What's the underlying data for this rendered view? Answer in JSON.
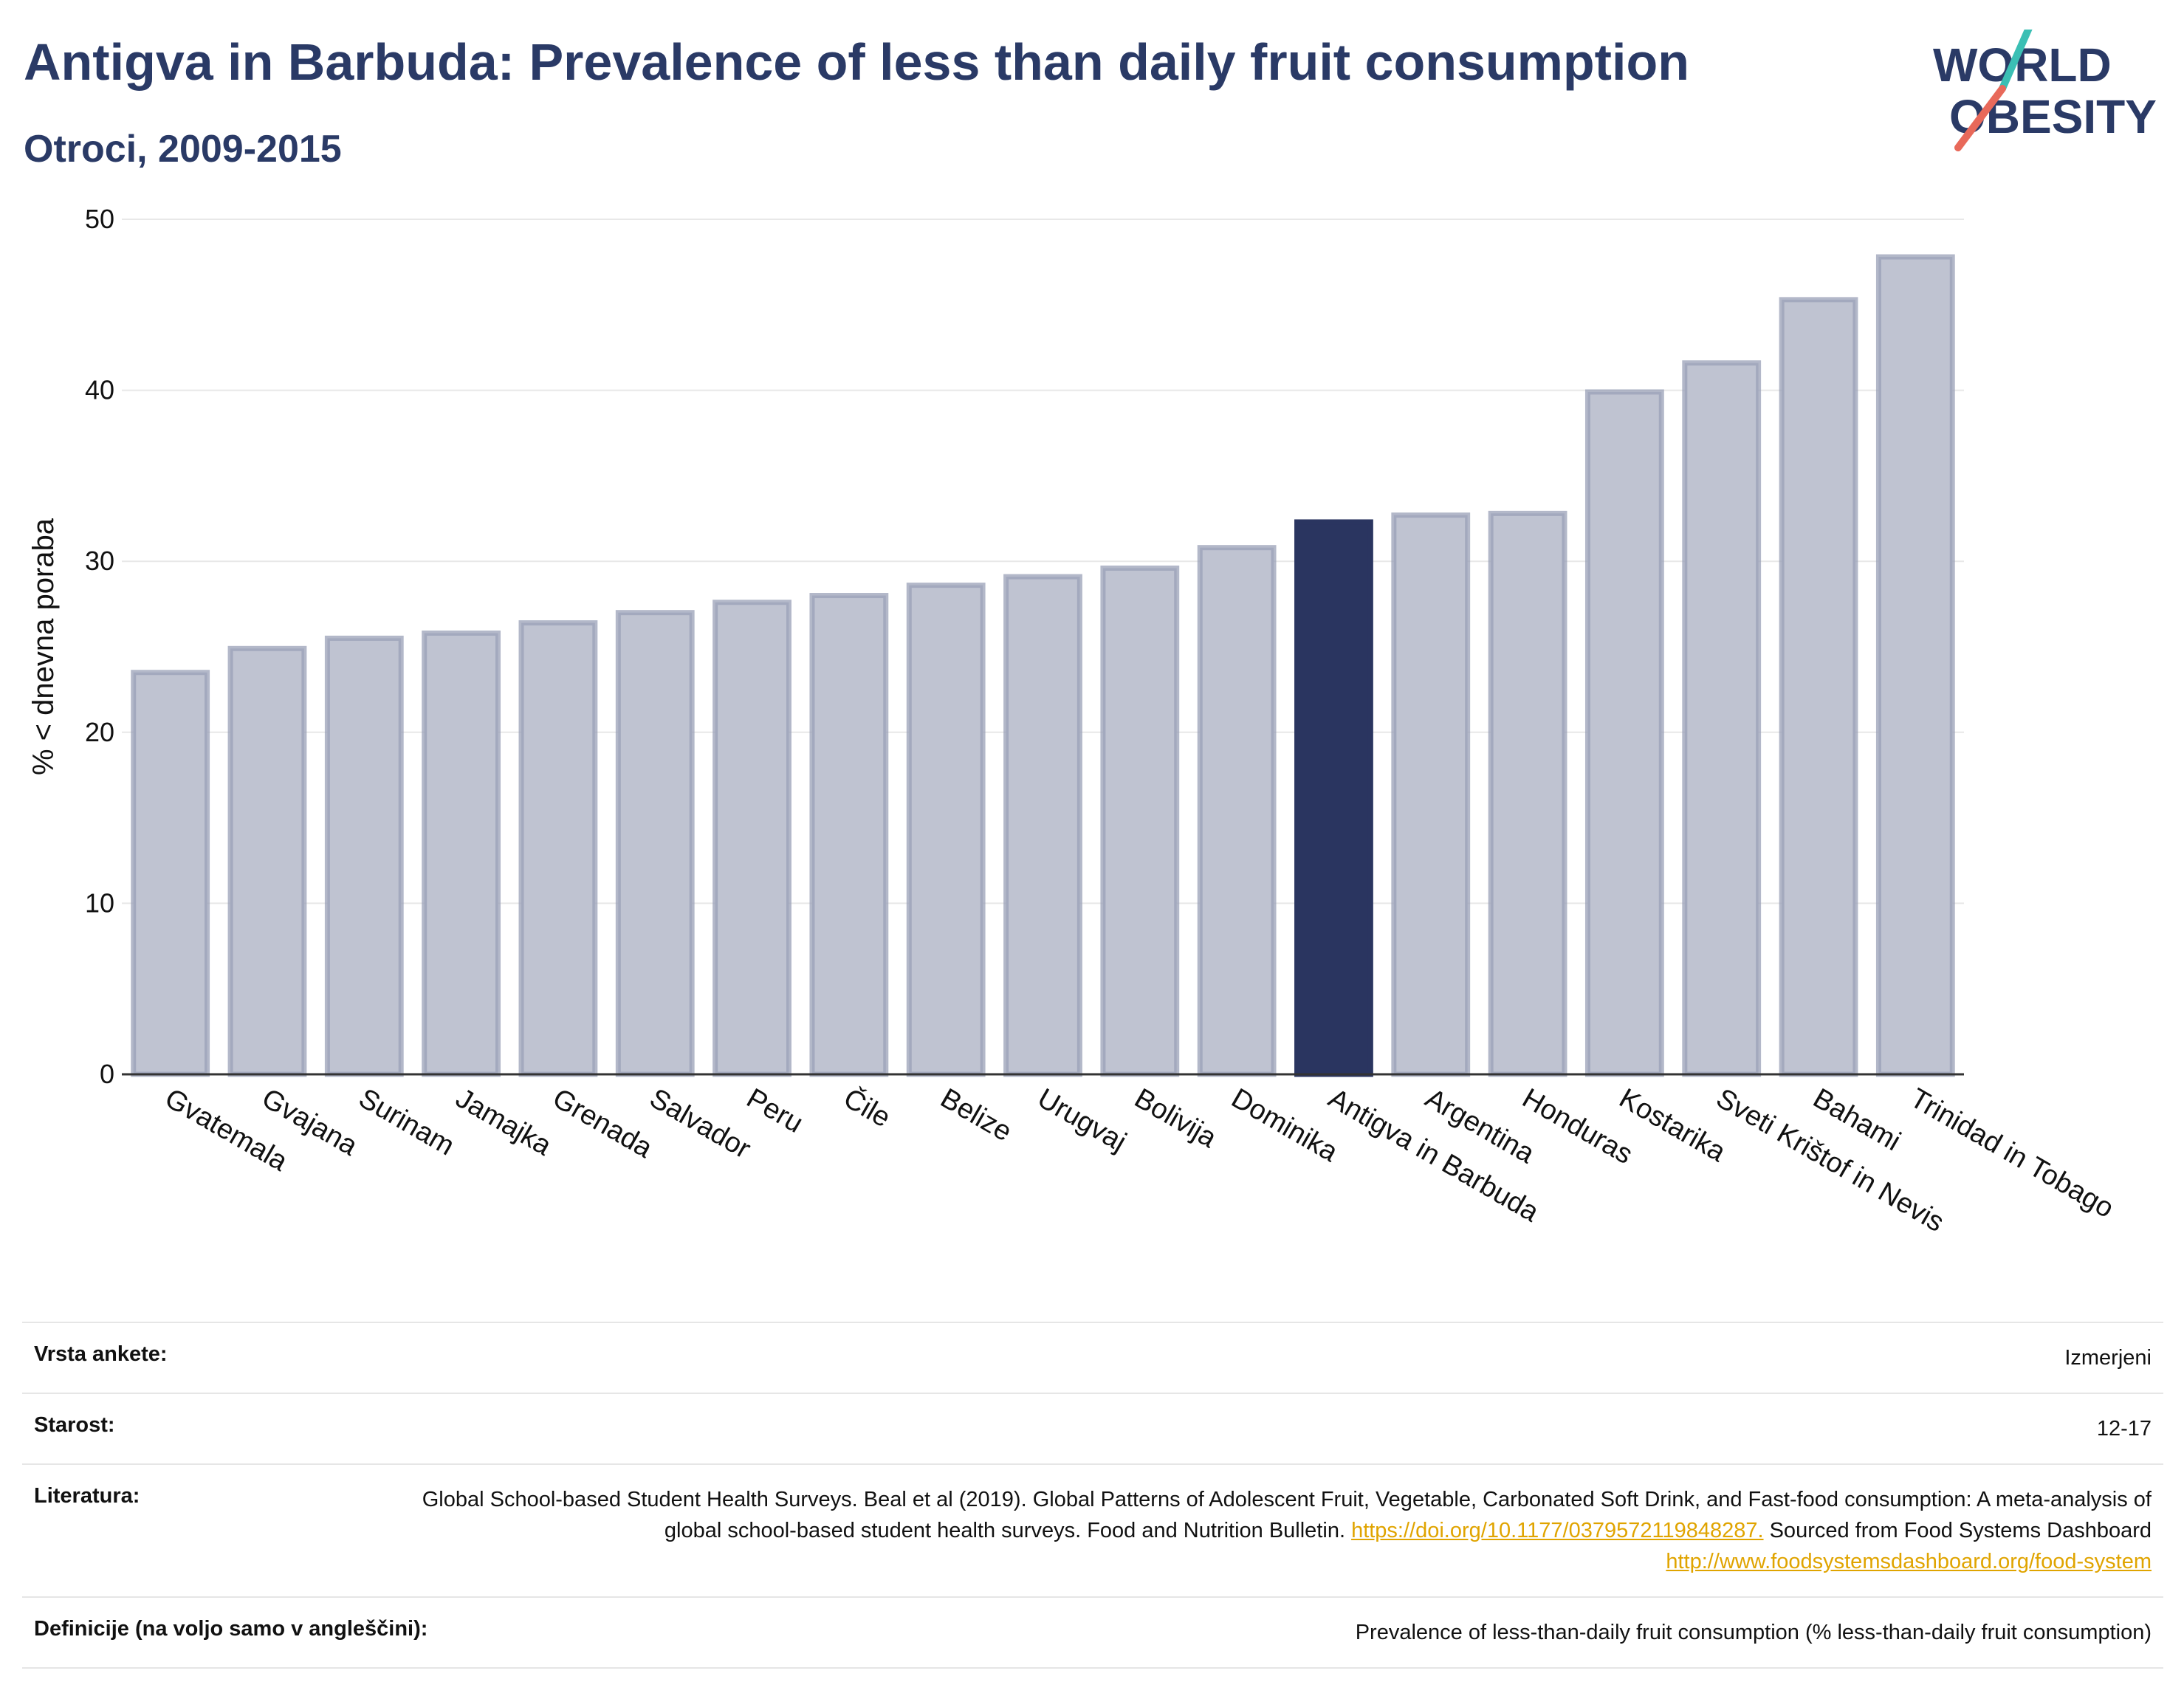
{
  "header": {
    "title": "Antigva in Barbuda: Prevalence of less than daily fruit consumption",
    "subtitle": "Otroci, 2009-2015"
  },
  "logo": {
    "line1": "WORLD",
    "line2": "OBESITY",
    "accent_teal": "#3bbfb4",
    "accent_red": "#e8695a"
  },
  "colors": {
    "bar": "#bfc3d1",
    "bar_edge": "#9aa0b7",
    "highlight": "#2a3560",
    "grid": "#e8e8e8",
    "axis": "#333333"
  },
  "chart_data": {
    "type": "bar",
    "ylabel": "% < dnevna poraba",
    "ylim": [
      0,
      50
    ],
    "yticks": [
      0,
      10,
      20,
      30,
      40,
      50
    ],
    "grid": true,
    "highlight": "Antigva in Barbuda",
    "categories": [
      "Gvatemala",
      "Gvajana",
      "Surinam",
      "Jamajka",
      "Grenada",
      "Salvador",
      "Peru",
      "Čile",
      "Belize",
      "Urugvaj",
      "Bolivija",
      "Dominika",
      "Antigva in Barbuda",
      "Argentina",
      "Honduras",
      "Kostarika",
      "Sveti Krištof in Nevis",
      "Bahami",
      "Trinidad in Tobago"
    ],
    "values": [
      23.5,
      24.9,
      25.5,
      25.8,
      26.4,
      27.0,
      27.6,
      28.0,
      28.6,
      29.1,
      29.6,
      30.8,
      32.3,
      32.7,
      32.8,
      39.9,
      41.6,
      45.3,
      47.8
    ]
  },
  "info": [
    {
      "label": "Vrsta ankete:",
      "value": "Izmerjeni"
    },
    {
      "label": "Starost:",
      "value": "12-17"
    },
    {
      "label": "Literatura:",
      "text1": "Global School-based Student Health Surveys. Beal et al (2019). Global Patterns of Adolescent Fruit, Vegetable, Carbonated Soft Drink, and Fast-food consumption: A meta-analysis of global school-based student health surveys. Food and Nutrition Bulletin.",
      "link1": "https://doi.org/10.1177/0379572119848287.",
      "text2": "Sourced from Food Systems Dashboard",
      "link2": "http://www.foodsystemsdashboard.org/food-system"
    },
    {
      "label": "Definicije (na voljo samo v angleščini):",
      "value": "Prevalence of less-than-daily fruit consumption (% less-than-daily fruit consumption)"
    }
  ]
}
